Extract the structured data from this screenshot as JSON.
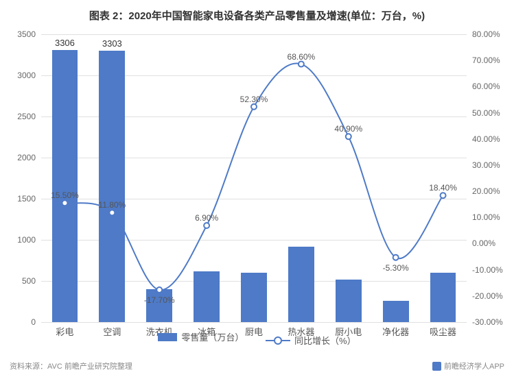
{
  "title": "图表 2：2020年中国智能家电设备各类产品零售量及增速(单位：万台，%)",
  "chart": {
    "type": "bar+line",
    "categories": [
      "彩电",
      "空调",
      "洗衣机",
      "冰箱",
      "厨电",
      "热水器",
      "厨小电",
      "净化器",
      "吸尘器"
    ],
    "bars": {
      "legend": "零售量（万台）",
      "values": [
        3306,
        3303,
        400,
        620,
        600,
        920,
        520,
        260,
        600
      ],
      "show_labels": [
        3306,
        3303,
        null,
        null,
        null,
        null,
        null,
        null,
        null
      ],
      "color": "#4e7ac7",
      "width_ratio": 0.55
    },
    "line": {
      "legend": "同比增长（%）",
      "values": [
        15.5,
        11.8,
        -17.7,
        6.9,
        52.3,
        68.6,
        40.9,
        -5.3,
        18.4
      ],
      "labels": [
        "15.50%",
        "11.80%",
        "-17.70%",
        "6.90%",
        "52.30%",
        "68.60%",
        "40.90%",
        "-5.30%",
        "18.40%"
      ],
      "color": "#4e7ac7",
      "marker": "circle"
    },
    "y_left": {
      "min": 0,
      "max": 3500,
      "step": 500
    },
    "y_right": {
      "min": -30,
      "max": 80,
      "step": 10,
      "format": "pct"
    },
    "background": "#ffffff",
    "grid_color": "#e0e0e0",
    "title_fontsize": 15,
    "axis_fontsize": 12
  },
  "source": "资料来源：AVC 前瞻产业研究院整理",
  "watermark": "前瞻经济学人APP"
}
